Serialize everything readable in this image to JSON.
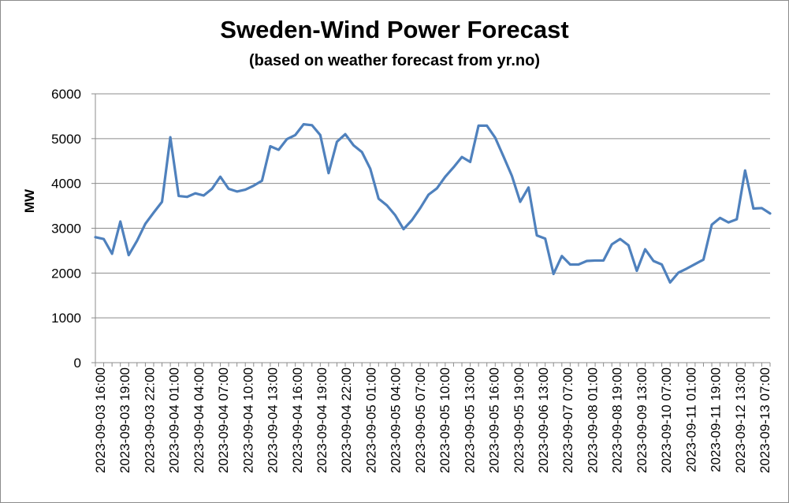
{
  "chart_data": {
    "type": "line",
    "title": "Sweden-Wind Power Forecast",
    "subtitle": "(based on weather forecast from yr.no)",
    "ylabel": "MW",
    "xlabel": "",
    "ylim": [
      0,
      6000
    ],
    "yticks": [
      0,
      1000,
      2000,
      3000,
      4000,
      5000,
      6000
    ],
    "grid": "horizontal",
    "line_color": "#4f81bd",
    "x_tick_labels": [
      "2023-09-03 16:00",
      "2023-09-03 19:00",
      "2023-09-03 22:00",
      "2023-09-04 01:00",
      "2023-09-04 04:00",
      "2023-09-04 07:00",
      "2023-09-04 10:00",
      "2023-09-04 13:00",
      "2023-09-04 16:00",
      "2023-09-04 19:00",
      "2023-09-04 22:00",
      "2023-09-05 01:00",
      "2023-09-05 04:00",
      "2023-09-05 07:00",
      "2023-09-05 10:00",
      "2023-09-05 13:00",
      "2023-09-05 16:00",
      "2023-09-05 19:00",
      "2023-09-06 13:00",
      "2023-09-07 07:00",
      "2023-09-08 01:00",
      "2023-09-08 19:00",
      "2023-09-09 13:00",
      "2023-09-10 07:00",
      "2023-09-11 01:00",
      "2023-09-11 19:00",
      "2023-09-12 13:00",
      "2023-09-13 07:00"
    ],
    "series": [
      {
        "values": [
          2800,
          2760,
          2430,
          3150,
          2400,
          2720,
          3100,
          3350,
          3590,
          5030,
          3720,
          3700,
          3780,
          3730,
          3880,
          4150,
          3880,
          3820,
          3860,
          3950,
          4060,
          4830,
          4750,
          4990,
          5080,
          5320,
          5300,
          5080,
          4230,
          4930,
          5100,
          4850,
          4700,
          4330,
          3660,
          3510,
          3290,
          2980,
          3180,
          3450,
          3750,
          3890,
          4150,
          4360,
          4590,
          4480,
          5290,
          5290,
          5020,
          4600,
          4170,
          3590,
          3910,
          2840,
          2770,
          1980,
          2380,
          2190,
          2190,
          2270,
          2280,
          2280,
          2640,
          2760,
          2620,
          2050,
          2530,
          2270,
          2190,
          1790,
          2010,
          2100,
          2200,
          2300,
          3080,
          3230,
          3130,
          3200,
          4290,
          3440,
          3450,
          3330
        ]
      }
    ]
  }
}
